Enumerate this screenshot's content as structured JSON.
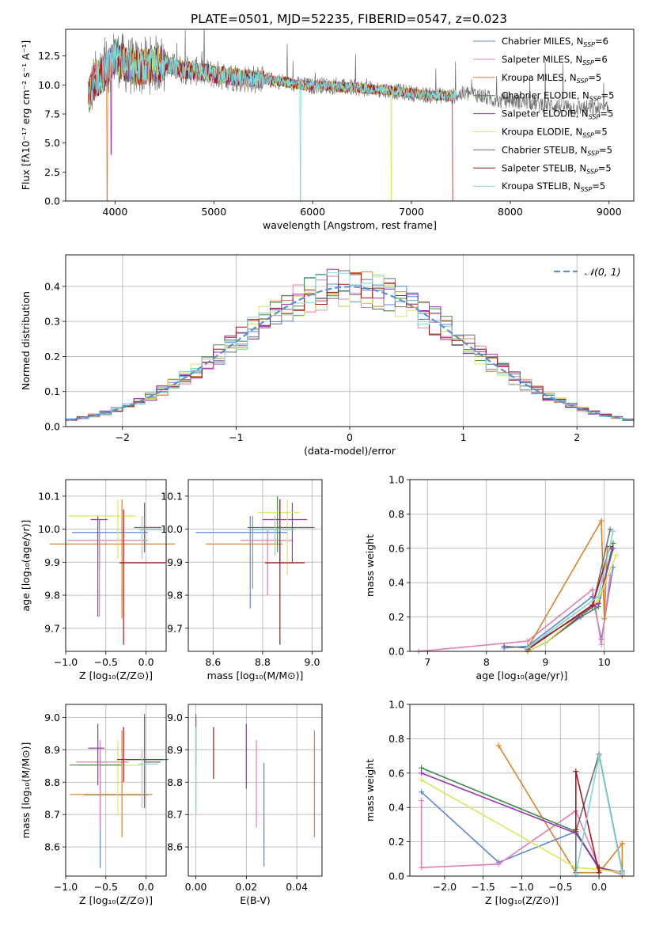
{
  "figure_title": "PLATE=0501, MJD=52235, FIBERID=0547, z=0.023",
  "colors": {
    "Chabrier MILES": "#5b86d9",
    "Salpeter MILES": "#e07fb6",
    "Kroupa MILES": "#d9822b",
    "Chabrier ELODIE": "#3f8a4a",
    "Salpeter ELODIE": "#9a2fb5",
    "Kroupa ELODIE": "#d7e85a",
    "Chabrier STELIB": "#6e6e6e",
    "Salpeter STELIB": "#a8161b",
    "Kroupa STELIB": "#7fd6d8",
    "normal": "#5b8fd6",
    "grid": "#b0b0b0"
  },
  "chart_data": [
    {
      "id": "spectrum",
      "type": "line",
      "title": "PLATE=0501, MJD=52235, FIBERID=0547, z=0.023",
      "xlabel": "wavelength [Angstrom, rest frame]",
      "ylabel": "Flux [fλ10⁻¹⁷ erg cm⁻² s⁻¹ A⁻¹]",
      "xlim": [
        3500,
        9250
      ],
      "ylim": [
        0,
        14.8
      ],
      "xticks": [
        4000,
        5000,
        6000,
        7000,
        8000,
        9000
      ],
      "yticks": [
        0.0,
        2.5,
        5.0,
        7.5,
        10.0,
        12.5
      ],
      "grid": false,
      "legend_position": "top-right",
      "legend": [
        {
          "label": "Chabrier MILES, N",
          "sub": "SSP",
          "eq": "=6"
        },
        {
          "label": "Salpeter MILES, N",
          "sub": "SSP",
          "eq": "=6"
        },
        {
          "label": "Kroupa MILES, N",
          "sub": "SSP",
          "eq": "=5"
        },
        {
          "label": "Chabrier ELODIE, N",
          "sub": "SSP",
          "eq": "=5"
        },
        {
          "label": "Salpeter ELODIE, N",
          "sub": "SSP",
          "eq": "=5"
        },
        {
          "label": "Kroupa ELODIE, N",
          "sub": "SSP",
          "eq": "=5"
        },
        {
          "label": "Chabrier STELIB, N",
          "sub": "SSP",
          "eq": "=5"
        },
        {
          "label": "Salpeter STELIB, N",
          "sub": "SSP",
          "eq": "=5"
        },
        {
          "label": "Kroupa STELIB, N",
          "sub": "SSP",
          "eq": "=5"
        }
      ],
      "data": {
        "x": [
          3730,
          3800,
          3900,
          4000,
          4100,
          4200,
          4300,
          4400,
          4500,
          4600,
          4700,
          4800,
          4900,
          5000,
          5100,
          5200,
          5300,
          5400,
          5500,
          5600,
          5700,
          5800,
          5900,
          6000,
          6100,
          6200,
          6300,
          6400,
          6500,
          6600,
          6700,
          6800,
          6900,
          7000,
          7100,
          7200,
          7300,
          7400,
          7500,
          7600,
          7700,
          7800,
          7900,
          8000,
          8100,
          8200,
          8300,
          8400,
          8500,
          8600,
          8700,
          8800,
          8900,
          9000
        ],
        "y": [
          9.0,
          10.5,
          11.0,
          12.5,
          11.8,
          11.5,
          11.6,
          11.8,
          11.9,
          11.5,
          11.3,
          11.2,
          11.1,
          10.9,
          10.8,
          10.7,
          10.6,
          10.5,
          10.5,
          10.4,
          10.3,
          10.1,
          10.0,
          9.9,
          10.0,
          9.9,
          9.8,
          9.8,
          9.7,
          9.6,
          9.6,
          9.5,
          9.4,
          9.3,
          9.2,
          9.1,
          9.1,
          9.0,
          9.2,
          9.3,
          9.1,
          8.8,
          8.6,
          8.7,
          8.6,
          8.5,
          8.4,
          8.3,
          8.2,
          8.1,
          8.0,
          8.0,
          7.9,
          7.9
        ]
      }
    },
    {
      "id": "residuals",
      "type": "histogram",
      "xlabel": "(data-model)/error",
      "ylabel": "Normed distribution",
      "xlim": [
        -2.5,
        2.5
      ],
      "ylim": [
        0,
        0.49
      ],
      "xticks": [
        -2,
        -1,
        0,
        1,
        2
      ],
      "yticks": [
        0.0,
        0.1,
        0.2,
        0.3,
        0.4
      ],
      "grid": true,
      "legend_position": "top-right",
      "legend": [
        "𝒩(0, 1)"
      ],
      "bin_width": 0.1
    },
    {
      "id": "age-vs-z",
      "type": "errorbar",
      "xlabel": "Z [log₁₀(Z/Z⊙)]",
      "ylabel": "age  [log₁₀(age/yr)]",
      "xlim": [
        -1.0,
        0.25
      ],
      "ylim": [
        9.63,
        10.15
      ],
      "xticks": [
        -1.0,
        -0.5,
        0.0
      ],
      "yticks": [
        9.7,
        9.8,
        9.9,
        10.0,
        10.1
      ],
      "grid": true,
      "points": [
        {
          "series": "Chabrier MILES",
          "x": -0.58,
          "xerr": [
            0.34,
            0.6
          ],
          "y": 9.99,
          "yerr": [
            9.88,
            10.03
          ]
        },
        {
          "series": "Salpeter MILES",
          "x": -0.58,
          "xerr": [
            0.4,
            0.6
          ],
          "y": 9.966,
          "yerr": [
            9.735,
            10.0
          ]
        },
        {
          "series": "Kroupa MILES",
          "x": -0.3,
          "xerr": [
            0.9,
            0.66
          ],
          "y": 9.955,
          "yerr": [
            9.73,
            10.09
          ]
        },
        {
          "series": "Chabrier ELODIE",
          "x": -0.02,
          "xerr": [
            0.13,
            0.2
          ],
          "y": 10.005,
          "yerr": [
            9.93,
            10.08
          ]
        },
        {
          "series": "Salpeter ELODIE",
          "x": -0.6,
          "xerr": [
            0.09,
            0.12
          ],
          "y": 10.029,
          "yerr": [
            9.735,
            10.04
          ]
        },
        {
          "series": "Kroupa ELODIE",
          "x": -0.35,
          "xerr": [
            0.62,
            0.23
          ],
          "y": 10.04,
          "yerr": [
            9.91,
            10.09
          ]
        },
        {
          "series": "Chabrier STELIB",
          "x": -0.02,
          "xerr": [
            0.0,
            0.21
          ],
          "y": 10.005,
          "yerr": [
            9.93,
            10.08
          ]
        },
        {
          "series": "Salpeter STELIB",
          "x": -0.28,
          "xerr": [
            0.05,
            0.52
          ],
          "y": 9.898,
          "yerr": [
            9.65,
            10.06
          ]
        },
        {
          "series": "Kroupa STELIB",
          "x": -0.05,
          "xerr": [
            0.03,
            0.25
          ],
          "y": 9.998,
          "yerr": [
            9.91,
            10.04
          ]
        }
      ]
    },
    {
      "id": "age-vs-mass",
      "type": "errorbar",
      "xlabel": "mass [log₁₀(M/M⊙)]",
      "ylabel": "",
      "xlim": [
        8.5,
        9.04
      ],
      "ylim": [
        9.63,
        10.15
      ],
      "xticks": [
        8.6,
        8.8,
        9.0
      ],
      "yticks": [
        9.7,
        9.8,
        9.9,
        10.0,
        10.1
      ],
      "grid": true,
      "points": [
        {
          "series": "Chabrier MILES",
          "x": 8.75,
          "xerr": [
            0.22,
            0.15
          ],
          "y": 9.99,
          "yerr": [
            9.76,
            10.04
          ]
        },
        {
          "series": "Salpeter MILES",
          "x": 8.82,
          "xerr": [
            0.11,
            0.1
          ],
          "y": 9.966,
          "yerr": [
            9.8,
            10.0
          ]
        },
        {
          "series": "Kroupa MILES",
          "x": 8.76,
          "xerr": [
            0.19,
            0.12
          ],
          "y": 9.955,
          "yerr": [
            9.82,
            10.04
          ]
        },
        {
          "series": "Chabrier ELODIE",
          "x": 8.86,
          "xerr": [
            0.06,
            0.14
          ],
          "y": 10.005,
          "yerr": [
            9.93,
            10.1
          ]
        },
        {
          "series": "Salpeter ELODIE",
          "x": 8.92,
          "xerr": [
            0.12,
            0.06
          ],
          "y": 10.029,
          "yerr": [
            9.9,
            10.08
          ]
        },
        {
          "series": "Kroupa ELODIE",
          "x": 8.9,
          "xerr": [
            0.12,
            0.05
          ],
          "y": 10.05,
          "yerr": [
            9.86,
            10.09
          ]
        },
        {
          "series": "Chabrier STELIB",
          "x": 8.87,
          "xerr": [
            0.13,
            0.14
          ],
          "y": 10.005,
          "yerr": [
            9.9,
            10.09
          ]
        },
        {
          "series": "Salpeter STELIB",
          "x": 8.87,
          "xerr": [
            0.06,
            0.1
          ],
          "y": 9.898,
          "yerr": [
            9.65,
            10.09
          ]
        },
        {
          "series": "Kroupa STELIB",
          "x": 8.85,
          "xerr": [
            0.1,
            0.08
          ],
          "y": 9.998,
          "yerr": [
            9.92,
            10.04
          ]
        }
      ]
    },
    {
      "id": "weight-vs-age",
      "type": "line",
      "xlabel": "age  [log₁₀(age/yr)]",
      "ylabel": "mass weight",
      "xlim": [
        6.7,
        10.5
      ],
      "ylim": [
        0,
        1.0
      ],
      "xticks": [
        7,
        8,
        9,
        10
      ],
      "yticks": [
        0.0,
        0.2,
        0.4,
        0.6,
        0.8,
        1.0
      ],
      "grid": true,
      "series": [
        {
          "name": "Chabrier MILES",
          "x": [
            8.3,
            8.7,
            9.8,
            9.95,
            10.15
          ],
          "y": [
            0.02,
            0.03,
            0.32,
            0.07,
            0.49
          ]
        },
        {
          "name": "Salpeter MILES",
          "x": [
            6.85,
            8.7,
            9.8,
            9.95,
            10.1
          ],
          "y": [
            0.0,
            0.06,
            0.36,
            0.04,
            0.44
          ]
        },
        {
          "name": "Kroupa MILES",
          "x": [
            8.7,
            9.95,
            10.0,
            10.05
          ],
          "y": [
            0.02,
            0.76,
            0.19,
            0.6
          ]
        },
        {
          "name": "Chabrier ELODIE",
          "x": [
            8.7,
            9.0,
            9.6,
            9.9,
            10.15
          ],
          "y": [
            0.0,
            0.05,
            0.2,
            0.26,
            0.63
          ]
        },
        {
          "name": "Salpeter ELODIE",
          "x": [
            8.7,
            9.0,
            9.6,
            9.9,
            10.15
          ],
          "y": [
            0.0,
            0.05,
            0.21,
            0.28,
            0.6
          ]
        },
        {
          "name": "Kroupa ELODIE",
          "x": [
            8.7,
            9.0,
            9.6,
            9.9,
            10.2
          ],
          "y": [
            0.0,
            0.05,
            0.22,
            0.3,
            0.56
          ]
        },
        {
          "name": "Chabrier STELIB",
          "x": [
            8.3,
            8.7,
            9.8,
            10.1
          ],
          "y": [
            0.03,
            0.02,
            0.26,
            0.71
          ]
        },
        {
          "name": "Salpeter STELIB",
          "x": [
            8.7,
            9.8,
            10.1
          ],
          "y": [
            0.01,
            0.27,
            0.61
          ]
        },
        {
          "name": "Kroupa STELIB",
          "x": [
            8.7,
            9.9,
            10.15
          ],
          "y": [
            0.02,
            0.32,
            0.7
          ]
        }
      ]
    },
    {
      "id": "mass-vs-z",
      "type": "errorbar",
      "xlabel": "Z [log₁₀(Z/Z⊙)]",
      "ylabel": "mass [log₁₀(M/M⊙)]",
      "xlim": [
        -1.0,
        0.25
      ],
      "ylim": [
        8.51,
        9.04
      ],
      "xticks": [
        -1.0,
        -0.5,
        0.0
      ],
      "yticks": [
        8.6,
        8.7,
        8.8,
        8.9,
        9.0
      ],
      "grid": true,
      "points": [
        {
          "series": "Chabrier MILES",
          "x": -0.57,
          "xerr": [
            0.2,
            0.6
          ],
          "y": 8.761,
          "yerr": [
            8.535,
            8.88
          ]
        },
        {
          "series": "Salpeter MILES",
          "x": -0.57,
          "xerr": [
            0.3,
            0.35
          ],
          "y": 8.862,
          "yerr": [
            8.66,
            8.93
          ]
        },
        {
          "series": "Kroupa MILES",
          "x": -0.3,
          "xerr": [
            0.65,
            0.38
          ],
          "y": 8.762,
          "yerr": [
            8.63,
            8.96
          ]
        },
        {
          "series": "Chabrier ELODIE",
          "x": -0.02,
          "xerr": [
            0.22,
            0.3
          ],
          "y": 8.87,
          "yerr": [
            8.72,
            9.0
          ]
        },
        {
          "series": "Salpeter ELODIE",
          "x": -0.6,
          "xerr": [
            0.12,
            0.08
          ],
          "y": 8.905,
          "yerr": [
            8.79,
            8.98
          ]
        },
        {
          "series": "Kroupa ELODIE",
          "x": -0.35,
          "xerr": [
            0.5,
            0.3
          ],
          "y": 8.852,
          "yerr": [
            8.7,
            8.93
          ]
        },
        {
          "series": "Chabrier STELIB",
          "x": -0.02,
          "xerr": [
            0.0,
            0.2
          ],
          "y": 8.862,
          "yerr": [
            8.72,
            9.01
          ]
        },
        {
          "series": "Salpeter STELIB",
          "x": -0.28,
          "xerr": [
            0.08,
            0.5
          ],
          "y": 8.87,
          "yerr": [
            8.8,
            8.97
          ]
        },
        {
          "series": "Kroupa STELIB",
          "x": -0.05,
          "xerr": [
            0.05,
            0.2
          ],
          "y": 8.856,
          "yerr": [
            8.72,
            8.9
          ]
        },
        {
          "series": "Chabrier ELODIE",
          "x": -0.95,
          "xerr": [
            0.0,
            0.65
          ],
          "y": 8.853,
          "yerr": [
            8.853,
            8.853
          ]
        }
      ]
    },
    {
      "id": "mass-vs-ebv",
      "type": "errorbar",
      "xlabel": "E(B-V)",
      "ylabel": "",
      "xlim": [
        -0.003,
        0.05
      ],
      "ylim": [
        8.51,
        9.04
      ],
      "xticks": [
        0.0,
        0.02,
        0.04
      ],
      "yticks": [
        8.6,
        8.7,
        8.8,
        8.9,
        9.0
      ],
      "grid": true,
      "points": [
        {
          "series": "Chabrier MILES",
          "x": 0.027,
          "yerr": [
            8.54,
            8.86
          ]
        },
        {
          "series": "Salpeter MILES",
          "x": 0.024,
          "yerr": [
            8.66,
            8.93
          ]
        },
        {
          "series": "Kroupa MILES",
          "x": 0.047,
          "yerr": [
            8.63,
            8.96
          ]
        },
        {
          "series": "Chabrier ELODIE",
          "x": 0.0,
          "yerr": [
            8.71,
            9.0
          ]
        },
        {
          "series": "Salpeter ELODIE",
          "x": 0.02,
          "yerr": [
            8.78,
            8.98
          ]
        },
        {
          "series": "Kroupa ELODIE",
          "x": 0.0,
          "yerr": [
            8.72,
            8.95
          ]
        },
        {
          "series": "Chabrier STELIB",
          "x": 0.0,
          "yerr": [
            8.85,
            9.01
          ]
        },
        {
          "series": "Salpeter STELIB",
          "x": 0.007,
          "yerr": [
            8.81,
            8.97
          ]
        },
        {
          "series": "Kroupa STELIB",
          "x": 0.0,
          "yerr": [
            8.7,
            8.97
          ]
        }
      ]
    },
    {
      "id": "weight-vs-z",
      "type": "line",
      "xlabel": "Z [log₁₀(Z/Z⊙)]",
      "ylabel": "mass weight",
      "xlim": [
        -2.45,
        0.45
      ],
      "ylim": [
        0,
        1.0
      ],
      "xticks": [
        -2.0,
        -1.5,
        -1.0,
        -0.5,
        0.0
      ],
      "yticks": [
        0.0,
        0.2,
        0.4,
        0.6,
        0.8,
        1.0
      ],
      "grid": true,
      "series": [
        {
          "name": "Chabrier MILES",
          "x": [
            -2.3,
            -1.3,
            -0.3,
            0.0,
            0.3
          ],
          "y": [
            0.49,
            0.08,
            0.26,
            0.04,
            0.02
          ]
        },
        {
          "name": "Salpeter MILES",
          "x": [
            -2.3,
            -2.3,
            -1.3,
            -0.3,
            0.0,
            0.3
          ],
          "y": [
            0.44,
            0.05,
            0.07,
            0.38,
            0.05,
            0.01
          ]
        },
        {
          "name": "Kroupa MILES",
          "x": [
            -1.3,
            -0.3,
            0.0,
            0.3,
            0.3
          ],
          "y": [
            0.76,
            0.02,
            0.02,
            0.19,
            0.0
          ]
        },
        {
          "name": "Chabrier ELODIE",
          "x": [
            -2.3,
            -0.3,
            0.0,
            0.3
          ],
          "y": [
            0.63,
            0.26,
            0.05,
            0.02
          ]
        },
        {
          "name": "Salpeter ELODIE",
          "x": [
            -2.3,
            -0.3,
            0.0,
            0.3
          ],
          "y": [
            0.6,
            0.25,
            0.05,
            0.02
          ]
        },
        {
          "name": "Kroupa ELODIE",
          "x": [
            -2.3,
            -0.3,
            0.0,
            0.3
          ],
          "y": [
            0.56,
            0.05,
            0.04,
            0.02
          ]
        },
        {
          "name": "Chabrier STELIB",
          "x": [
            -0.3,
            -0.3,
            0.0,
            0.3
          ],
          "y": [
            0.02,
            0.26,
            0.71,
            0.03
          ]
        },
        {
          "name": "Salpeter STELIB",
          "x": [
            -0.3,
            -0.3,
            0.0,
            0.0
          ],
          "y": [
            0.27,
            0.61,
            0.02,
            0.05
          ]
        },
        {
          "name": "Kroupa STELIB",
          "x": [
            -0.3,
            0.0,
            0.3
          ],
          "y": [
            0.01,
            0.7,
            0.02
          ]
        }
      ]
    }
  ]
}
